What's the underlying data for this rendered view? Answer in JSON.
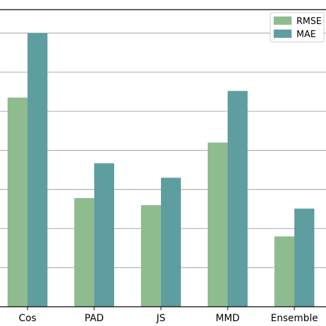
{
  "chart_data": {
    "type": "bar",
    "title": "",
    "xlabel": "",
    "ylabel": "",
    "categories": [
      "Cos",
      "PAD",
      "JS",
      "MMD",
      "Ensemble"
    ],
    "series": [
      {
        "name": "RMSE",
        "color": "#8fbc8f",
        "values": [
          5.35,
          2.78,
          2.6,
          4.2,
          1.8
        ]
      },
      {
        "name": "MAE",
        "color": "#5f9ea0",
        "values": [
          7.0,
          3.67,
          3.3,
          5.52,
          2.51
        ]
      }
    ],
    "ylim": [
      0,
      7.6
    ],
    "grid": {
      "y": true,
      "x": false
    },
    "legend": {
      "position": "top-right"
    }
  }
}
